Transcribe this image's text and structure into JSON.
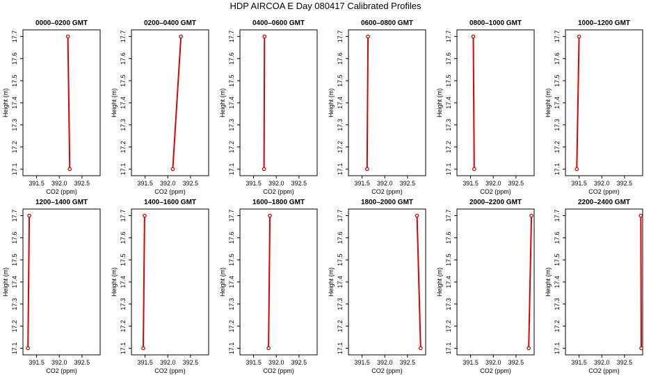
{
  "title": "HDP  AIRCOA E  Day 080417  Calibrated Profiles",
  "colors": {
    "series": "#dd0000",
    "axis": "#000000"
  },
  "chart_data": {
    "type": "line",
    "xlabel": "CO2 (ppm)",
    "ylabel": "Height (m)",
    "xlim": [
      391.2,
      392.9
    ],
    "ylim": [
      17.07,
      17.73
    ],
    "xticks": [
      391.5,
      392.0,
      392.5
    ],
    "xtick_labels": [
      "391.5",
      "392.0",
      "392.5"
    ],
    "yticks": [
      17.1,
      17.2,
      17.3,
      17.4,
      17.5,
      17.6,
      17.7
    ],
    "ytick_labels": [
      "17.1",
      "17.2",
      "17.3",
      "17.4",
      "17.5",
      "17.6",
      "17.7"
    ],
    "panels": [
      {
        "title": "0000–0200 GMT",
        "points": [
          [
            392.19,
            17.7
          ],
          [
            392.23,
            17.1
          ]
        ]
      },
      {
        "title": "0200–0400 GMT",
        "points": [
          [
            392.29,
            17.7
          ],
          [
            392.11,
            17.1
          ]
        ]
      },
      {
        "title": "0400–0600 GMT",
        "points": [
          [
            391.74,
            17.7
          ],
          [
            391.73,
            17.1
          ]
        ]
      },
      {
        "title": "0600–0800 GMT",
        "points": [
          [
            391.63,
            17.7
          ],
          [
            391.61,
            17.1
          ]
        ]
      },
      {
        "title": "0800–1000 GMT",
        "points": [
          [
            391.56,
            17.7
          ],
          [
            391.58,
            17.1
          ]
        ]
      },
      {
        "title": "1000–1200 GMT",
        "points": [
          [
            391.5,
            17.7
          ],
          [
            391.45,
            17.1
          ]
        ]
      },
      {
        "title": "1200–1400 GMT",
        "points": [
          [
            391.34,
            17.7
          ],
          [
            391.31,
            17.1
          ]
        ]
      },
      {
        "title": "1400–1600 GMT",
        "points": [
          [
            391.49,
            17.7
          ],
          [
            391.46,
            17.1
          ]
        ]
      },
      {
        "title": "1600–1800 GMT",
        "points": [
          [
            391.86,
            17.7
          ],
          [
            391.83,
            17.1
          ]
        ]
      },
      {
        "title": "1800–2000 GMT",
        "points": [
          [
            392.71,
            17.7
          ],
          [
            392.79,
            17.1
          ]
        ]
      },
      {
        "title": "2000–2200 GMT",
        "points": [
          [
            392.84,
            17.7
          ],
          [
            392.78,
            17.1
          ]
        ]
      },
      {
        "title": "2200–2400 GMT",
        "points": [
          [
            392.86,
            17.7
          ],
          [
            392.87,
            17.1
          ]
        ]
      }
    ]
  }
}
